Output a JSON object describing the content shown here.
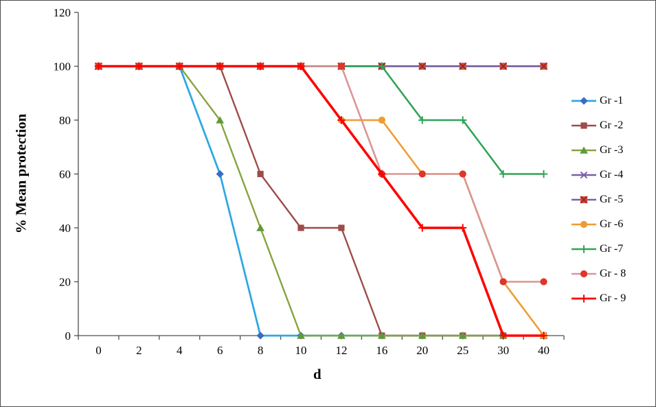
{
  "chart_data": {
    "type": "line",
    "title": "",
    "xlabel": "d",
    "ylabel": "% Mean protection",
    "ylim": [
      0,
      120
    ],
    "yticks": [
      0,
      20,
      40,
      60,
      80,
      100,
      120
    ],
    "grid": false,
    "legend_position": "right",
    "categories": [
      "0",
      "2",
      "4",
      "6",
      "8",
      "10",
      "12",
      "16",
      "20",
      "25",
      "30",
      "40"
    ],
    "series": [
      {
        "name": "Gr -1",
        "values": [
          100,
          100,
          100,
          60,
          0,
          0,
          0,
          0,
          0,
          0,
          0,
          0
        ],
        "color": "#2FA8E1",
        "width": 2.8,
        "marker": "diamond",
        "marker_color": "#3A6CC0"
      },
      {
        "name": "Gr -2",
        "values": [
          100,
          100,
          100,
          100,
          60,
          40,
          40,
          0,
          0,
          0,
          0,
          0
        ],
        "color": "#9E4B49",
        "width": 2.4,
        "marker": "square",
        "marker_color": "#9E4B49"
      },
      {
        "name": "Gr -3",
        "values": [
          100,
          100,
          100,
          80,
          40,
          0,
          0,
          0,
          0,
          0,
          0,
          0
        ],
        "color": "#86A33D",
        "width": 2.4,
        "marker": "triangle",
        "marker_color": "#61993B"
      },
      {
        "name": "Gr -4",
        "values": [
          100,
          100,
          100,
          100,
          100,
          100,
          100,
          100,
          100,
          100,
          100,
          100
        ],
        "color": "#7B5EA7",
        "width": 2.4,
        "marker": "x",
        "marker_color": "#7B5EA7"
      },
      {
        "name": "Gr -5",
        "values": [
          100,
          100,
          100,
          100,
          100,
          100,
          100,
          100,
          100,
          100,
          100,
          100
        ],
        "color": "#7D60A0",
        "width": 2.4,
        "marker": "boxed-x",
        "marker_color": "#DB4338",
        "marker_stroke": "#7A2D25"
      },
      {
        "name": "Gr -6",
        "values": [
          100,
          100,
          100,
          100,
          100,
          100,
          80,
          80,
          60,
          60,
          20,
          0
        ],
        "color": "#EE9C33",
        "width": 2.6,
        "marker": "circle",
        "marker_color": "#EE9C33"
      },
      {
        "name": "Gr -7",
        "values": [
          100,
          100,
          100,
          100,
          100,
          100,
          100,
          100,
          80,
          80,
          60,
          60
        ],
        "color": "#2FA457",
        "width": 2.6,
        "marker": "plus",
        "marker_color": "#2FA457"
      },
      {
        "name": "Gr - 8",
        "values": [
          100,
          100,
          100,
          100,
          100,
          100,
          100,
          60,
          60,
          60,
          20,
          20
        ],
        "color": "#D99694",
        "width": 2.6,
        "marker": "circle",
        "marker_color": "#E0352B"
      },
      {
        "name": "Gr - 9",
        "values": [
          100,
          100,
          100,
          100,
          100,
          100,
          80,
          60,
          40,
          40,
          0,
          0
        ],
        "color": "#FF0000",
        "width": 3.6,
        "marker": "plus",
        "marker_color": "#FF0000"
      }
    ]
  }
}
